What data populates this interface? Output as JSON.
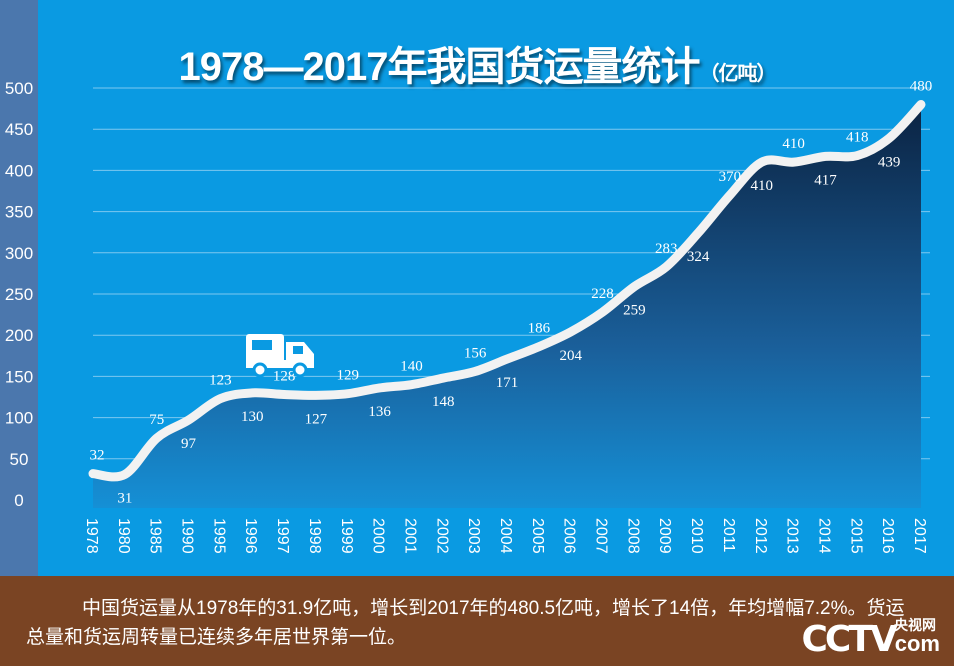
{
  "title": {
    "main": "1978—2017年我国货运量统计",
    "unit": "（亿吨）"
  },
  "colors": {
    "background": "#0a9ae2",
    "left_band": "#4b77ad",
    "area_dark": "#0d2a4a",
    "line": "#ffffff",
    "footer": "#7a4423"
  },
  "chart_data": {
    "type": "area",
    "title": "1978—2017年我国货运量统计（亿吨）",
    "categories": [
      "1978",
      "1980",
      "1985",
      "1990",
      "1995",
      "1996",
      "1997",
      "1998",
      "1999",
      "2000",
      "2001",
      "2002",
      "2003",
      "2004",
      "2005",
      "2006",
      "2007",
      "2008",
      "2009",
      "2010",
      "2011",
      "2012",
      "2013",
      "2014",
      "2015",
      "2016",
      "2017"
    ],
    "values": [
      32,
      31,
      75,
      97,
      123,
      130,
      128,
      127,
      129,
      136,
      140,
      148,
      156,
      171,
      186,
      204,
      228,
      259,
      283,
      324,
      370,
      410,
      410,
      417,
      418,
      439,
      480
    ],
    "yticks": [
      0,
      50,
      100,
      150,
      200,
      250,
      300,
      350,
      400,
      450,
      500
    ],
    "ylim": [
      0,
      500
    ],
    "grid": true,
    "icon": "truck-icon"
  },
  "footer": {
    "text": "中国货运量从1978年的31.9亿吨，增长到2017年的480.5亿吨，增长了14倍，年均增幅7.2%。货运总量和货运周转量已连续多年居世界第一位。",
    "logo": {
      "brand": "CCTV",
      "cn": "央视网",
      "suffix": "com"
    }
  }
}
